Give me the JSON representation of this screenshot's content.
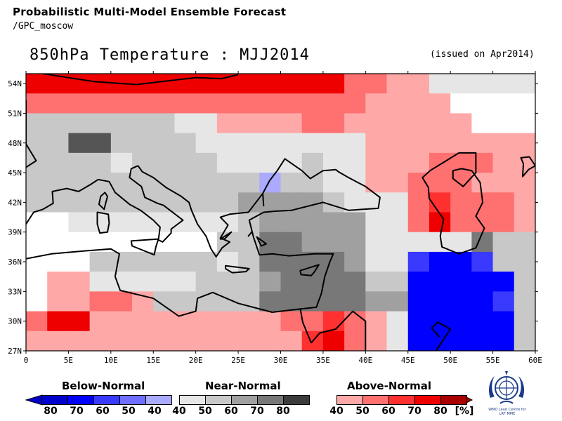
{
  "header": {
    "line1": "Probabilistic Multi-Model Ensemble Forecast",
    "line2": "/GPC_moscow",
    "title": "850hPa Temperature : MJJ2014",
    "issued": "(issued on Apr2014)"
  },
  "axes": {
    "lon_min": 0,
    "lon_max": 60,
    "lat_min": 27,
    "lat_max": 55,
    "lon_ticks": [
      "0",
      "5E",
      "10E",
      "15E",
      "20E",
      "25E",
      "30E",
      "35E",
      "40E",
      "45E",
      "50E",
      "55E",
      "60E"
    ],
    "lat_ticks": [
      "27N",
      "30N",
      "33N",
      "36N",
      "39N",
      "42N",
      "45N",
      "48N",
      "51N",
      "54N"
    ]
  },
  "legend": {
    "below": {
      "title": "Below-Normal",
      "labels": [
        "80",
        "70",
        "60",
        "50",
        "40"
      ],
      "colors": [
        "#0000cc",
        "#0000ff",
        "#3a3aff",
        "#6e6eff",
        "#aaaaff"
      ]
    },
    "near": {
      "title": "Near-Normal",
      "labels": [
        "40",
        "50",
        "60",
        "70",
        "80"
      ],
      "colors": [
        "#e6e6e6",
        "#c8c8c8",
        "#a0a0a0",
        "#787878",
        "#3c3c3c"
      ]
    },
    "above": {
      "title": "Above-Normal",
      "labels": [
        "40",
        "50",
        "60",
        "70",
        "80"
      ],
      "colors": [
        "#ffa8a8",
        "#ff7070",
        "#ff3030",
        "#ee0000",
        "#aa0000"
      ]
    },
    "unit": "[%]"
  },
  "logo": {
    "line1": "WMO Lead Centre for",
    "line2": "LRF MME"
  },
  "palette": {
    "W": "#ffffff",
    "g1": "#e6e6e6",
    "g2": "#c8c8c8",
    "g3": "#a0a0a0",
    "g4": "#787878",
    "g5": "#555555",
    "r1": "#ffa8a8",
    "r2": "#ff7070",
    "r3": "#ff3030",
    "r4": "#ee0000",
    "r5": "#cc0000",
    "b1": "#aaaaff",
    "b3": "#3a3aff",
    "b4": "#0000ff",
    "b5": "#0000cc"
  },
  "grid_rows": [
    "r4 r4 r4 r4 r4 r4 r4 r4 r4 r4 r4 r4 r4 r4 r4 r2 r2 r1 r1 g1 g1 g1 g1 g1 g1 W",
    "r2 r2 r2 r2 r2 r2 r2 r2 r2 r2 r2 r2 r2 r2 r2 r2 r1 r1 r1 r1 W W W W W W",
    "g2 g2 g2 g2 g2 g2 g2 g1 g1 r1 r1 r1 r1 r2 r2 r1 r1 r1 r1 r1 r1 W W W W W",
    "g2 g2 g5 g5 g2 g2 g2 g2 g1 g1 g1 g1 g1 g1 g1 g1 r1 r1 r1 r1 r1 r1 r1 r1 r1 r1",
    "g2 g2 g2 g2 g1 g2 g2 g2 g2 g1 g1 g1 g1 g2 g1 g1 r1 r1 r1 r2 r2 r2 r1 r1 r1 r1",
    "g2 g2 g2 g2 g2 g2 g2 g2 g2 g2 g2 b1 g2 g2 g1 g1 r1 r1 r2 r2 r2 r1 r1 r1 r1 r1",
    "g2 g2 g2 g2 g2 g2 g2 g2 g2 g2 g3 g3 g3 g3 g2 g1 g1 g1 r2 r3 r2 r2 r2 r1 r1 r1",
    "W W g1 g1 g1 g1 g1 g1 g1 g1 g2 g3 g3 g3 g3 g3 g1 g1 r2 r4 r2 r2 r2 r1 r1 r1",
    "W W W W W W W W W g2 g2 g4 g4 g3 g3 g3 g1 g1 g1 g1 g1 g4 g2 g2 r1 r1",
    "W W W g2 g2 g2 g2 g2 g2 g1 g2 g4 g4 g4 g4 g3 g1 g1 b3 b4 b4 b3 g2 g2 r1 r2",
    "W r1 r1 g1 g1 g1 g1 g1 g2 g2 g2 g3 g4 g4 g4 g4 g2 g2 b4 b4 b4 b4 b4 g2 g2 g2",
    "W r1 r1 r2 r2 r1 g2 g2 g2 g2 g2 g4 g4 g4 g4 g4 g3 g3 b4 b4 b4 b4 b3 g2 g4 g2",
    "r2 r4 r4 r1 r1 r1 r1 r1 r1 r1 r1 r1 r2 r2 r3 r2 r1 g1 b4 b4 b4 b4 b4 g2 g2 g1",
    "r1 r1 r1 r1 r1 r1 r1 r1 r1 r1 r1 r1 r1 r3 r4 r2 r1 g1 b4 b4 b4 b4 b4 g2 r1 r5"
  ],
  "coastlines": [
    "M2,55 L8,54.2 L13,53.9 L20,54.6 L23,54.5 L25,54.9",
    "M0,52.3 L0,47.9 L1.2,46.2 L-0.8,45.1 L-1.8,43.4 L-5,43.4",
    "M0,36.3 L3,36.8 L7,37.1 L10,37.3 L11,36.8 L10.5,34.5 L11.1,33.1 L15,32.3 L18,30.5 L20,31 L20.2,32.3 L22,32.9 L25,31.8 L29,30.9 L32,31.2 L34.2,31.4 L34.8,32.8 L35.2,34.5 L35.8,36 L36.2,36.8 L34,36.8 L31,36.6 L29,36.8 L27.5,36.7 L26.8,38.5 L26.3,40.2 L28,41 L29.2,41.1 L31.3,41.2 L35,42 L38,41.2 L41.5,41.4 L41.7,42.5 L40,43.6 L38,44.5 L36.8,45.1 L36.5,45.3 L35,45.2 L33.5,44.4 L32.5,45.2 L30.5,46.4 L29.6,45.2 L28.7,44.2 L27.9,42.9 L28,41.6",
    "M27.9,42.9 L26.2,41 L24,40.8 L22.9,40.5 L23.8,39.7 L22.9,38.4 L24,38 L23.1,37.4 L22.4,36.5 L21.8,37.3 L21.2,38.6 L20.2,39.8 L19.5,41.2 L19.2,42 L18.3,42.6 L16.5,43.5 L15,44.5 L13.7,45.1 L13.2,45.7",
    "M13.2,45.7 L12.4,45.4 L12.2,44.5 L13.6,43.6 L14,42.5 L15.5,41.9 L16.2,41.7 L18.5,40.2 L17.1,39.3 L17.1,38.9 L16.1,38 L15.6,38.2 L15.8,39.5 L15,40.2 L13.5,41.2 L12.2,41.8 L10.5,43 L9.8,44.1 L8.5,44.3 L7.6,43.8 L6.2,43.1 L4.8,43.4 L3.1,43.1 L3.2,41.9 L2,41.3 L0.9,41 L0,39.8",
    "M40,27 L40,30 L38.5,31 L36.5,29.2 L34.6,28.8 L33.6,27.8",
    "M33.6,27.8 L32.6,29.9 L32.3,31.3",
    "M48.3,27 L50,29.2 L48.5,29.9 L47.8,29.3 L48.7,28.4",
    "M50.5,27 L51.5,26.5 L52.2,25.2 L53.5,25.5 L56,26.2 L56.4,25.7 L56.2,27",
    "M47.6,45.2 L49.5,46.2 L51,47 L53,47 L53,45 L51.5,43.6 L50.3,44.4 L50.3,45.2 L51.3,45.4 L52.5,45.2 L53.5,44 L53.8,42 L53,40.6 L54,39.4 L53,37.4 L51,36.8 L49,37.5 L48.8,38.6 L49.2,40.3 L47.5,42.4 L47.4,43.5 L46.7,44.5 L47.6,45.2",
    "M60,45.7 L59.2,45.3 L58.5,44.6 L58.6,45.9 L58.3,46.5 L59.3,46.6 L60,45.7"
  ],
  "islands": [
    "M9.2,41.3 L9.6,42.6 L9.3,43 L8.8,42.6 L8.6,41.8 Z",
    "M8.4,41 L9.7,40.8 L9.8,39.9 L9.6,39 L8.7,38.9 L8.4,39.8 Z",
    "M12.4,38.1 L15.6,38.3 L15.3,37.5 L15.1,36.7 L12.5,37.6 Z",
    "M23.5,35.6 L26.3,35.3 L25.9,35 L24.3,34.9 L23.5,35.3 Z",
    "M32.3,35.1 L34.5,35.7 L34,35 L33.6,34.6 L32.4,34.7 Z",
    "M27.2,38.5 L28.3,37.8 L27.7,37.6 Z",
    "M22.9,38.3 L24.2,39 L23.4,38.3 Z",
    "M26.6,39 L26.2,38.6 Z"
  ]
}
